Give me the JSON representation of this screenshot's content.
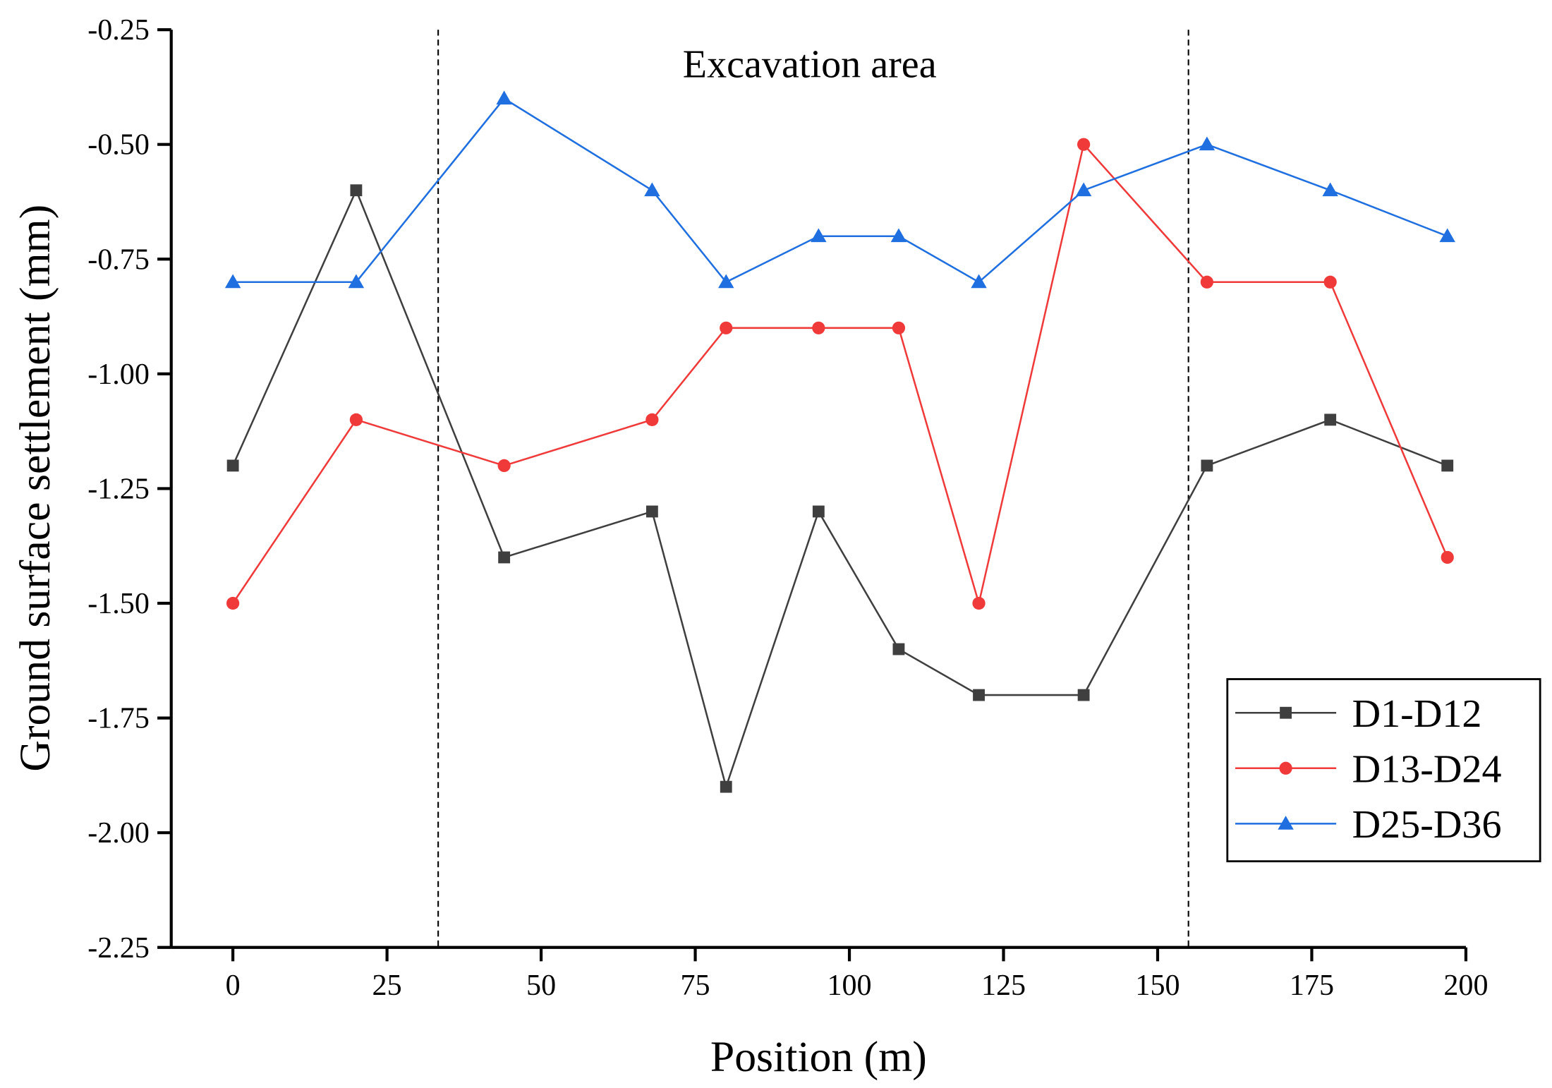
{
  "chart_data": {
    "type": "line",
    "title": "",
    "xlabel": "Position (m)",
    "ylabel": "Ground surface settlement (mm)",
    "xlim": [
      -10,
      200
    ],
    "ylim": [
      -2.25,
      -0.25
    ],
    "xticks": [
      0,
      25,
      50,
      75,
      100,
      125,
      150,
      175,
      200
    ],
    "yticks": [
      -0.25,
      -0.5,
      -0.75,
      -1.0,
      -1.25,
      -1.5,
      -1.75,
      -2.0,
      -2.25
    ],
    "ytick_labels": [
      "-0.25",
      "-0.50",
      "-0.75",
      "-1.00",
      "-1.25",
      "-1.50",
      "-1.75",
      "-2.00",
      "-2.25"
    ],
    "grid": false,
    "legend_position": "bottom-right",
    "x": [
      0,
      20,
      44,
      68,
      80,
      95,
      108,
      121,
      138,
      158,
      178,
      197
    ],
    "series": [
      {
        "name": "D1-D12",
        "color": "#3f3f3f",
        "marker": "square",
        "values": [
          -1.2,
          -0.6,
          -1.4,
          -1.3,
          -1.9,
          -1.3,
          -1.6,
          -1.7,
          -1.7,
          -1.2,
          -1.1,
          -1.2
        ]
      },
      {
        "name": "D13-D24",
        "color": "#f03a3a",
        "marker": "circle",
        "values": [
          -1.5,
          -1.1,
          -1.2,
          -1.1,
          -0.9,
          -0.9,
          -0.9,
          -1.5,
          -0.5,
          -0.8,
          -0.8,
          -1.4
        ]
      },
      {
        "name": "D25-D36",
        "color": "#1f6fe0",
        "marker": "triangle",
        "values": [
          -0.8,
          -0.8,
          -0.4,
          -0.6,
          -0.8,
          -0.7,
          -0.7,
          -0.8,
          -0.6,
          -0.5,
          -0.6,
          -0.7
        ]
      }
    ],
    "vlines": [
      33.3,
      155
    ],
    "annotations": [
      {
        "text": "Excavation area"
      }
    ]
  }
}
